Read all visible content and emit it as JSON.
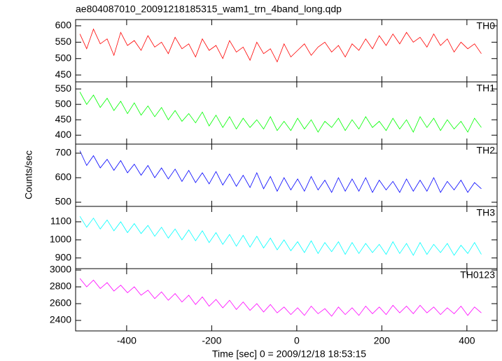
{
  "chart_data": [
    {
      "type": "line",
      "title": "ae804087010_20091218185315_wam1_trn_4band_long.qdp",
      "x": [
        -510,
        -494,
        -478,
        -462,
        -446,
        -430,
        -414,
        -398,
        -382,
        -366,
        -350,
        -334,
        -318,
        -302,
        -286,
        -270,
        -254,
        -238,
        -222,
        -206,
        -190,
        -174,
        -158,
        -142,
        -126,
        -110,
        -94,
        -78,
        -62,
        -46,
        -30,
        -14,
        2,
        18,
        34,
        50,
        66,
        82,
        98,
        114,
        130,
        146,
        162,
        178,
        194,
        210,
        226,
        242,
        258,
        274,
        290,
        306,
        322,
        338,
        354,
        370,
        386,
        402,
        418,
        434
      ],
      "series": [
        {
          "name": "TH0",
          "color": "#ff0000",
          "values": [
            575,
            530,
            590,
            545,
            560,
            510,
            580,
            540,
            555,
            525,
            570,
            535,
            550,
            515,
            565,
            530,
            545,
            505,
            560,
            525,
            540,
            500,
            555,
            520,
            535,
            495,
            550,
            515,
            530,
            490,
            545,
            505,
            525,
            545,
            510,
            535,
            550,
            520,
            540,
            505,
            545,
            525,
            560,
            530,
            570,
            540,
            575,
            545,
            580,
            550,
            565,
            535,
            575,
            540,
            560,
            520,
            550,
            530,
            545,
            515
          ]
        }
      ],
      "ylim": [
        429,
        619
      ],
      "yticks": [
        450,
        500,
        550,
        600
      ]
    },
    {
      "type": "line",
      "x": [
        -510,
        -494,
        -478,
        -462,
        -446,
        -430,
        -414,
        -398,
        -382,
        -366,
        -350,
        -334,
        -318,
        -302,
        -286,
        -270,
        -254,
        -238,
        -222,
        -206,
        -190,
        -174,
        -158,
        -142,
        -126,
        -110,
        -94,
        -78,
        -62,
        -46,
        -30,
        -14,
        2,
        18,
        34,
        50,
        66,
        82,
        98,
        114,
        130,
        146,
        162,
        178,
        194,
        210,
        226,
        242,
        258,
        274,
        290,
        306,
        322,
        338,
        354,
        370,
        386,
        402,
        418,
        434
      ],
      "series": [
        {
          "name": "TH1",
          "color": "#00ff00",
          "values": [
            540,
            500,
            530,
            490,
            520,
            480,
            510,
            470,
            505,
            465,
            495,
            460,
            490,
            450,
            480,
            445,
            470,
            440,
            475,
            430,
            465,
            425,
            460,
            420,
            455,
            425,
            450,
            420,
            460,
            415,
            445,
            415,
            455,
            420,
            450,
            410,
            445,
            425,
            455,
            415,
            450,
            420,
            460,
            425,
            445,
            415,
            455,
            420,
            450,
            410,
            460,
            425,
            455,
            415,
            450,
            420,
            445,
            410,
            455,
            425
          ]
        }
      ],
      "ylim": [
        371,
        573
      ],
      "yticks": [
        400,
        450,
        500,
        550
      ]
    },
    {
      "type": "line",
      "y_label": "Counts/sec",
      "x": [
        -510,
        -494,
        -478,
        -462,
        -446,
        -430,
        -414,
        -398,
        -382,
        -366,
        -350,
        -334,
        -318,
        -302,
        -286,
        -270,
        -254,
        -238,
        -222,
        -206,
        -190,
        -174,
        -158,
        -142,
        -126,
        -110,
        -94,
        -78,
        -62,
        -46,
        -30,
        -14,
        2,
        18,
        34,
        50,
        66,
        82,
        98,
        114,
        130,
        146,
        162,
        178,
        194,
        210,
        226,
        242,
        258,
        274,
        290,
        306,
        322,
        338,
        354,
        370,
        386,
        402,
        418,
        434
      ],
      "series": [
        {
          "name": "TH2",
          "color": "#0000ff",
          "values": [
            710,
            650,
            690,
            640,
            675,
            630,
            670,
            620,
            655,
            610,
            650,
            600,
            640,
            595,
            635,
            585,
            630,
            580,
            620,
            575,
            625,
            570,
            615,
            565,
            610,
            560,
            620,
            555,
            605,
            545,
            600,
            550,
            595,
            545,
            605,
            550,
            590,
            540,
            600,
            545,
            595,
            545,
            600,
            540,
            590,
            550,
            585,
            540,
            595,
            545,
            590,
            545,
            600,
            540,
            585,
            550,
            590,
            540,
            580,
            555
          ]
        }
      ],
      "ylim": [
        483,
        737
      ],
      "yticks": [
        500,
        600,
        700
      ]
    },
    {
      "type": "line",
      "x": [
        -510,
        -494,
        -478,
        -462,
        -446,
        -430,
        -414,
        -398,
        -382,
        -366,
        -350,
        -334,
        -318,
        -302,
        -286,
        -270,
        -254,
        -238,
        -222,
        -206,
        -190,
        -174,
        -158,
        -142,
        -126,
        -110,
        -94,
        -78,
        -62,
        -46,
        -30,
        -14,
        2,
        18,
        34,
        50,
        66,
        82,
        98,
        114,
        130,
        146,
        162,
        178,
        194,
        210,
        226,
        242,
        258,
        274,
        290,
        306,
        322,
        338,
        354,
        370,
        386,
        402,
        418,
        434
      ],
      "series": [
        {
          "name": "TH3",
          "color": "#00ffff",
          "values": [
            1130,
            1070,
            1120,
            1060,
            1110,
            1050,
            1100,
            1040,
            1090,
            1035,
            1080,
            1020,
            1070,
            1010,
            1060,
            1000,
            1055,
            995,
            1050,
            985,
            1040,
            975,
            1030,
            965,
            1025,
            960,
            1020,
            955,
            1010,
            945,
            1000,
            940,
            990,
            930,
            995,
            925,
            985,
            935,
            990,
            920,
            985,
            925,
            980,
            930,
            975,
            920,
            990,
            925,
            980,
            915,
            985,
            920,
            975,
            930,
            980,
            915,
            970,
            925,
            985,
            920
          ]
        }
      ],
      "ylim": [
        841,
        1185
      ],
      "yticks": [
        900,
        1000,
        1100
      ]
    },
    {
      "type": "line",
      "x_label": "Time [sec] 0 = 2009/12/18 18:53:15",
      "x": [
        -510,
        -494,
        -478,
        -462,
        -446,
        -430,
        -414,
        -398,
        -382,
        -366,
        -350,
        -334,
        -318,
        -302,
        -286,
        -270,
        -254,
        -238,
        -222,
        -206,
        -190,
        -174,
        -158,
        -142,
        -126,
        -110,
        -94,
        -78,
        -62,
        -46,
        -30,
        -14,
        2,
        18,
        34,
        50,
        66,
        82,
        98,
        114,
        130,
        146,
        162,
        178,
        194,
        210,
        226,
        242,
        258,
        274,
        290,
        306,
        322,
        338,
        354,
        370,
        386,
        402,
        418,
        434
      ],
      "series": [
        {
          "name": "TH0123",
          "color": "#ff00ff",
          "values": [
            2900,
            2800,
            2880,
            2780,
            2850,
            2750,
            2820,
            2730,
            2800,
            2700,
            2760,
            2660,
            2740,
            2640,
            2720,
            2620,
            2700,
            2590,
            2680,
            2570,
            2650,
            2550,
            2640,
            2530,
            2620,
            2520,
            2600,
            2500,
            2590,
            2490,
            2560,
            2470,
            2550,
            2460,
            2570,
            2480,
            2540,
            2450,
            2560,
            2470,
            2550,
            2460,
            2570,
            2480,
            2560,
            2470,
            2580,
            2490,
            2570,
            2480,
            2580,
            2490,
            2560,
            2470,
            2550,
            2480,
            2570,
            2460,
            2560,
            2490
          ]
        }
      ],
      "ylim": [
        2275,
        3017
      ],
      "yticks": [
        2400,
        2600,
        2800,
        3000
      ],
      "xlim": [
        -520,
        471
      ],
      "xticks": [
        -400,
        -200,
        0,
        200,
        400
      ]
    }
  ]
}
